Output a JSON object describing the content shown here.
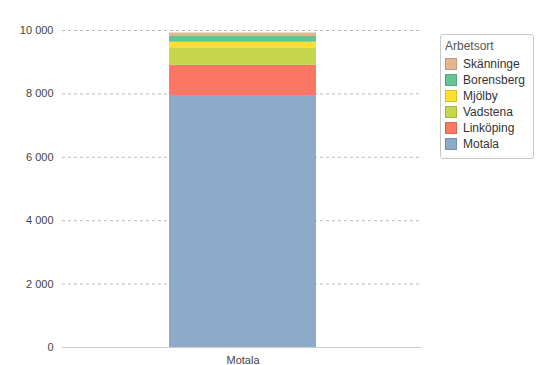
{
  "chart_data": {
    "type": "bar",
    "stacked": true,
    "legend_title": "Arbetsort",
    "categories": [
      "Motala"
    ],
    "series": [
      {
        "name": "Motala",
        "color": "#8eaacb",
        "values": [
          7950
        ]
      },
      {
        "name": "Linköping",
        "color": "#fb7763",
        "values": [
          950
        ]
      },
      {
        "name": "Vadstena",
        "color": "#c5d54c",
        "values": [
          530
        ]
      },
      {
        "name": "Mjölby",
        "color": "#fde02e",
        "values": [
          200
        ]
      },
      {
        "name": "Borensberg",
        "color": "#66c290",
        "values": [
          180
        ]
      },
      {
        "name": "Skänninge",
        "color": "#e3b48d",
        "values": [
          110
        ]
      }
    ],
    "ylim": [
      0,
      10000
    ],
    "yticks": [
      0,
      {
        "value": 2000,
        "label": "2 000"
      },
      {
        "value": 4000,
        "label": "4 000"
      },
      {
        "value": 6000,
        "label": "6 000"
      },
      {
        "value": 8000,
        "label": "8 000"
      },
      {
        "value": 10000,
        "label": "10 000"
      }
    ],
    "grid": true,
    "legend": "upper right"
  }
}
